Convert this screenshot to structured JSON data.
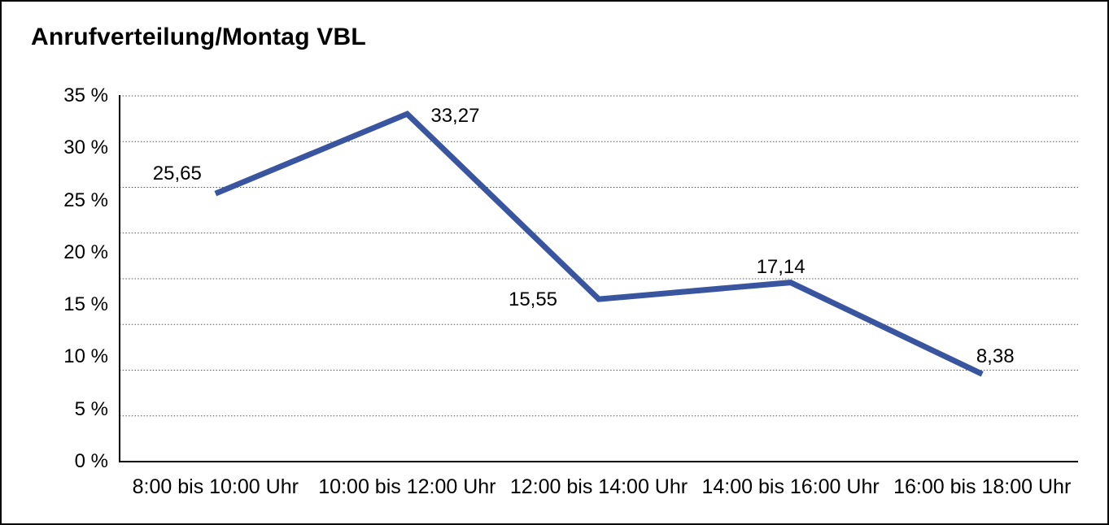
{
  "page": {
    "title": "Anrufverteilung/Montag VBL"
  },
  "chart_data": {
    "type": "line",
    "title": "Anrufverteilung/Montag VBL",
    "categories": [
      "8:00 bis 10:00 Uhr",
      "10:00 bis 12:00 Uhr",
      "12:00 bis 14:00 Uhr",
      "14:00 bis 16:00 Uhr",
      "16:00 bis 18:00 Uhr"
    ],
    "values": [
      25.65,
      33.27,
      15.55,
      17.14,
      8.38
    ],
    "point_labels": [
      "25,65",
      "33,27",
      "15,55",
      "17,14",
      "8,38"
    ],
    "y_ticks": [
      {
        "label": "35 %",
        "value": 35
      },
      {
        "label": "30 %",
        "value": 30
      },
      {
        "label": "25 %",
        "value": 25
      },
      {
        "label": "20 %",
        "value": 20
      },
      {
        "label": "15 %",
        "value": 15
      },
      {
        "label": "10 %",
        "value": 10
      },
      {
        "label": "5 %",
        "value": 5
      },
      {
        "label": "0 %",
        "value": 0
      }
    ],
    "ylim": [
      0,
      35
    ],
    "xlabel": "",
    "ylabel": "",
    "legend": "none",
    "grid": "horizontal-dotted",
    "n_grid_intervals": 8,
    "line_color": "#3A55A0",
    "axis_color": "#000000",
    "grid_color": "#555555",
    "text_color": "#000000",
    "background": "#FFFFFF"
  }
}
